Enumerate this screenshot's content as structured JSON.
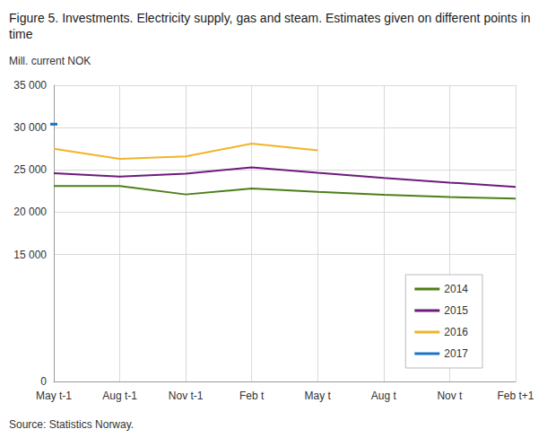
{
  "chart_data": {
    "type": "line",
    "title": "Figure 5. Investments. Electricity supply, gas and steam. Estimates given on different points in time",
    "subtitle": "Mill. current NOK",
    "source": "Source: Statistics Norway.",
    "categories": [
      "May t-1",
      "Aug t-1",
      "Nov t-1",
      "Feb t",
      "May t",
      "Aug t",
      "Nov t",
      "Feb t+1"
    ],
    "series": [
      {
        "name": "2014",
        "color": "#4d7f17",
        "marker": "none",
        "values": [
          23100,
          23100,
          22100,
          22800,
          22400,
          22050,
          21800,
          21600
        ]
      },
      {
        "name": "2015",
        "color": "#6d1b7b",
        "marker": "none",
        "values": [
          24600,
          24200,
          24550,
          25300,
          24650,
          24050,
          23500,
          23000
        ]
      },
      {
        "name": "2016",
        "color": "#f0b428",
        "marker": "none",
        "values": [
          27500,
          26300,
          26600,
          28100,
          27300,
          null,
          null,
          null
        ]
      },
      {
        "name": "2017",
        "color": "#1a74c6",
        "marker": "dash",
        "values": [
          30400,
          null,
          null,
          null,
          null,
          null,
          null,
          null
        ]
      }
    ],
    "ylim": [
      0,
      35000
    ],
    "yticks": [
      {
        "value": 0,
        "label": "0"
      },
      {
        "value": 15000,
        "label": "15 000"
      },
      {
        "value": 20000,
        "label": "20 000"
      },
      {
        "value": 25000,
        "label": "25 000"
      },
      {
        "value": 30000,
        "label": "30 000"
      },
      {
        "value": 35000,
        "label": "35 000"
      }
    ],
    "grid": true,
    "legend": "bottom right"
  }
}
